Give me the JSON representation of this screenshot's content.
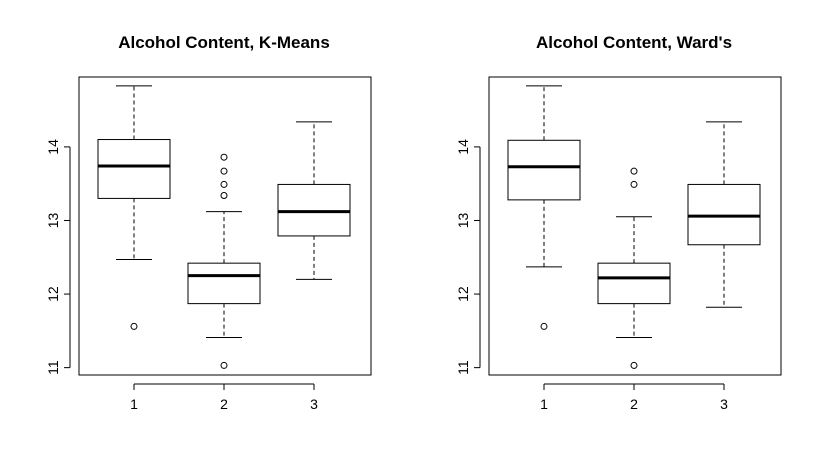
{
  "chart_data": [
    {
      "type": "box",
      "title": "Alcohol Content, K-Means",
      "xlabel": "",
      "ylabel": "",
      "categories": [
        "1",
        "2",
        "3"
      ],
      "ylim": [
        10.9,
        14.95
      ],
      "y_ticks": [
        "11",
        "12",
        "13",
        "14"
      ],
      "boxes": [
        {
          "category": "1",
          "whisker_low": 12.47,
          "q1": 13.3,
          "median": 13.74,
          "q3": 14.1,
          "whisker_high": 14.83,
          "outliers": [
            11.56
          ]
        },
        {
          "category": "2",
          "whisker_low": 11.41,
          "q1": 11.87,
          "median": 12.25,
          "q3": 12.42,
          "whisker_high": 13.12,
          "outliers": [
            11.03,
            13.34,
            13.49,
            13.67,
            13.86
          ]
        },
        {
          "category": "3",
          "whisker_low": 12.2,
          "q1": 12.79,
          "median": 13.12,
          "q3": 13.49,
          "whisker_high": 14.34,
          "outliers": []
        }
      ]
    },
    {
      "type": "box",
      "title": "Alcohol Content, Ward's",
      "xlabel": "",
      "ylabel": "",
      "categories": [
        "1",
        "2",
        "3"
      ],
      "ylim": [
        10.9,
        14.95
      ],
      "y_ticks": [
        "11",
        "12",
        "13",
        "14"
      ],
      "boxes": [
        {
          "category": "1",
          "whisker_low": 12.37,
          "q1": 13.28,
          "median": 13.73,
          "q3": 14.09,
          "whisker_high": 14.83,
          "outliers": [
            11.56
          ]
        },
        {
          "category": "2",
          "whisker_low": 11.41,
          "q1": 11.87,
          "median": 12.22,
          "q3": 12.42,
          "whisker_high": 13.05,
          "outliers": [
            11.03,
            13.49,
            13.67
          ]
        },
        {
          "category": "3",
          "whisker_low": 11.82,
          "q1": 12.67,
          "median": 13.06,
          "q3": 13.49,
          "whisker_high": 14.34,
          "outliers": []
        }
      ]
    }
  ]
}
